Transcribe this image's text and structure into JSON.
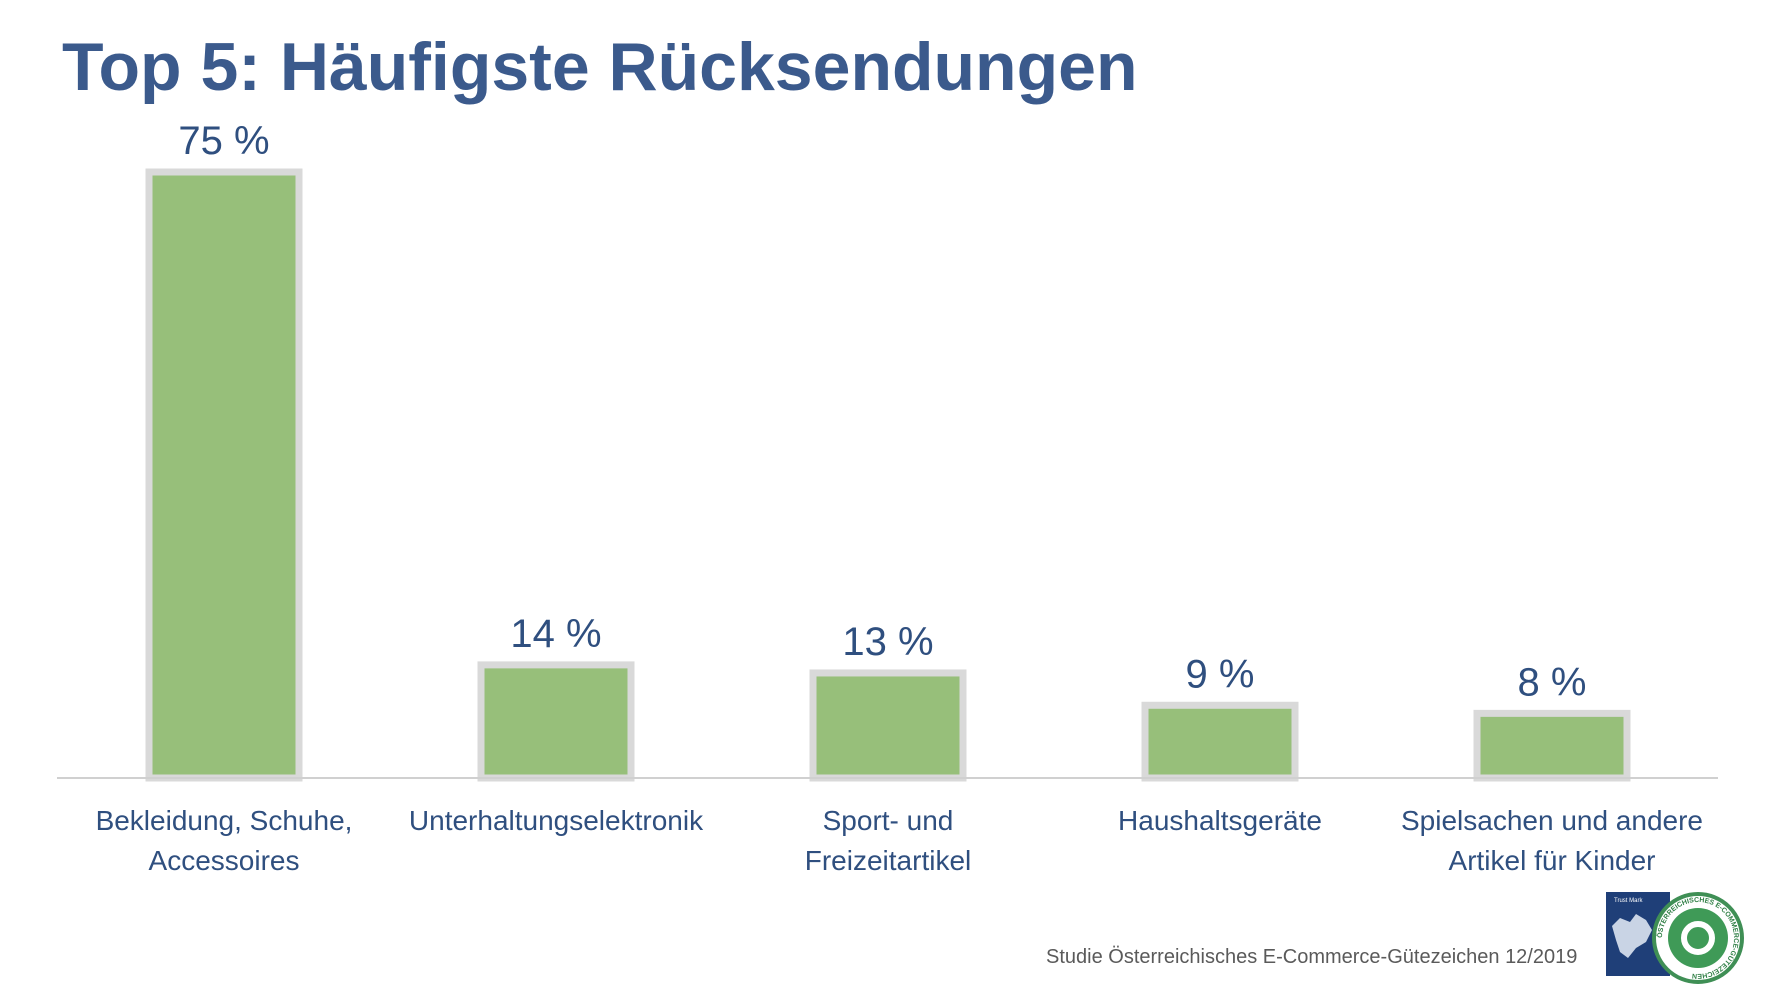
{
  "title": "Top 5: Häufigste Rücksendungen",
  "source": "Studie Österreichisches E-Commerce-Gütezeichen 12/2019",
  "colors": {
    "title": "#3b5a8c",
    "bar_fill": "#97bf7a",
    "bar_border": "#d9d9d9",
    "label": "#2f4f7f",
    "axis": "#d0d0d0"
  },
  "logo": {
    "left_text": "Trust Mark",
    "ring_text": "ÖSTERREICHISCHES E-COMMERCE-GÜTEZEICHEN"
  },
  "chart_data": {
    "type": "bar",
    "categories": [
      [
        "Bekleidung, Schuhe,",
        "Accessoires"
      ],
      [
        "Unterhaltungselektronik"
      ],
      [
        "Sport- und",
        "Freizeitartikel"
      ],
      [
        "Haushaltsgeräte"
      ],
      [
        "Spielsachen und andere",
        "Artikel für Kinder"
      ]
    ],
    "values": [
      75,
      14,
      13,
      9,
      8
    ],
    "value_labels": [
      "75 %",
      "14 %",
      "13 %",
      "9 %",
      "8 %"
    ],
    "ylim": [
      0,
      75
    ],
    "grid": false,
    "legend": "none"
  }
}
